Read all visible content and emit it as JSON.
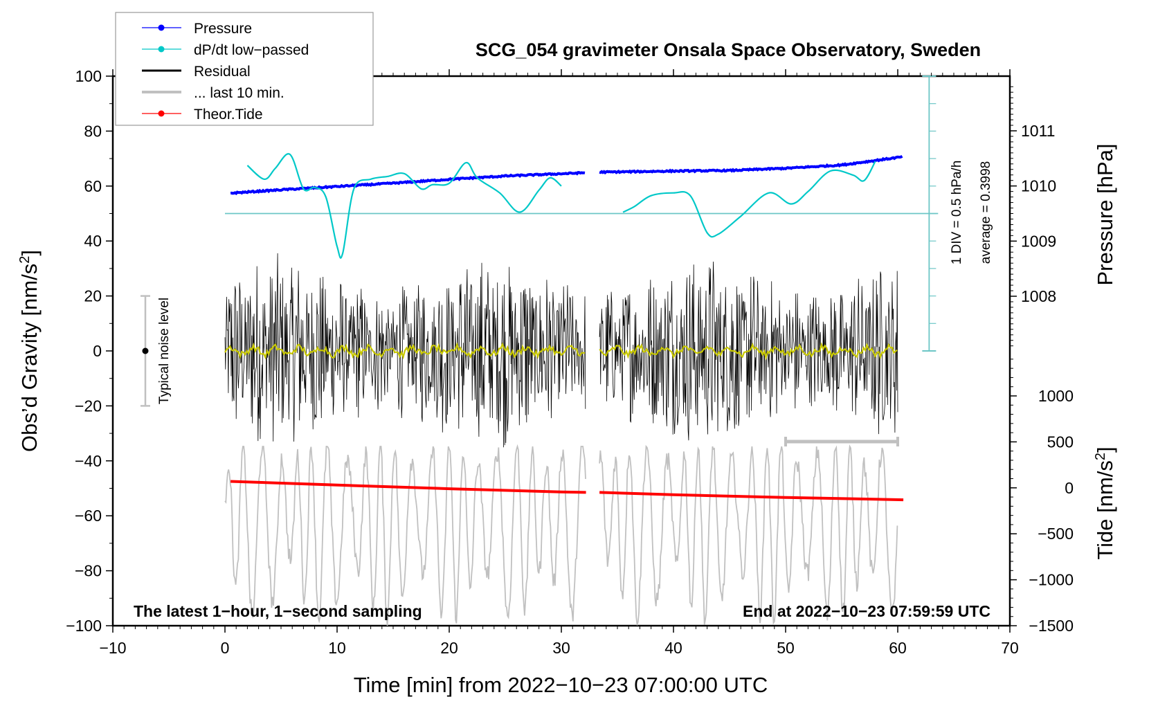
{
  "chart_data": {
    "type": "line",
    "title": "SCG_054 gravimeter Onsala Space Observatory, Sweden",
    "xlabel": "Time [min] from 2022−10−23 07:00:00 UTC",
    "ylabel_left": "Obs’d Gravity [nm/s",
    "ylabel_left_sup": "2",
    "ylabel_left_end": "]",
    "ylabel_right_pressure": "Pressure [hPa]",
    "ylabel_right_tide": "Tide [nm/s",
    "ylabel_right_tide_sup": "2",
    "ylabel_right_tide_end": "]",
    "xlim": [
      -10,
      70
    ],
    "ylim_left": [
      -100,
      100
    ],
    "pressure_axis_range": [
      1007,
      1011.9
    ],
    "tide_axis_range": [
      -1500,
      1000
    ],
    "x_ticks": [
      "−10",
      "0",
      "10",
      "20",
      "30",
      "40",
      "50",
      "60",
      "70"
    ],
    "x_tick_values": [
      -10,
      0,
      10,
      20,
      30,
      40,
      50,
      60,
      70
    ],
    "y_ticks_left": [
      "100",
      "80",
      "60",
      "40",
      "20",
      "0",
      "−20",
      "−40",
      "−60",
      "−80",
      "−100"
    ],
    "y_tick_values_left": [
      100,
      80,
      60,
      40,
      20,
      0,
      -20,
      -40,
      -60,
      -80,
      -100
    ],
    "pressure_ticks": [
      "1011",
      "1010",
      "1009",
      "1008"
    ],
    "pressure_tick_values": [
      1011,
      1010,
      1009,
      1008
    ],
    "tide_ticks": [
      "1000",
      "500",
      "0",
      "−500",
      "−1000",
      "−1500"
    ],
    "tide_tick_values": [
      1000,
      500,
      0,
      -500,
      -1000,
      -1500
    ],
    "legend": {
      "position": "top-left",
      "entries": [
        {
          "label": "Pressure",
          "color": "#0000ff",
          "marker": "dot"
        },
        {
          "label": "dP/dt low−passed",
          "color": "#00c8c8",
          "marker": "dot"
        },
        {
          "label": "Residual",
          "color": "#000000",
          "marker": "line"
        },
        {
          "label": "... last 10 min.",
          "color": "#c0c0c0",
          "marker": "line"
        },
        {
          "label": "Theor.Tide",
          "color": "#ff0000",
          "marker": "dot"
        }
      ]
    },
    "annotations": {
      "bottom_left": "The latest 1−hour, 1−second sampling",
      "bottom_right": "End at 2022−10−23 07:59:59 UTC",
      "noise_label": "Typical noise level",
      "noise_range": [
        -20,
        20
      ],
      "div_label": "1 DIV = 0.5 hPa/h",
      "average_label": "average = 0.3998",
      "last10_bar_minutes": [
        50,
        60
      ],
      "last10_bar_level": -33
    },
    "gap_minutes": [
      32.2,
      33.4
    ],
    "series": [
      {
        "name": "Pressure",
        "units": "hPa",
        "color": "#0000ff",
        "x": [
          0.5,
          5,
          10,
          15,
          20,
          25,
          32.2,
          33.4,
          40,
          45,
          50,
          55,
          60.5
        ],
        "values": [
          1009.87,
          1009.93,
          1009.99,
          1010.05,
          1010.12,
          1010.18,
          1010.24,
          1010.25,
          1010.27,
          1010.28,
          1010.32,
          1010.38,
          1010.53
        ]
      },
      {
        "name": "dP/dt low-passed",
        "units": "plot units (0 ref line at 50)",
        "color": "#00c8c8",
        "x": [
          2,
          3.5,
          4.5,
          5.8,
          7,
          8,
          9,
          10,
          10.5,
          11.5,
          13,
          14.5,
          16,
          17.5,
          18.5,
          20,
          21.5,
          22.5,
          24.5,
          26.3,
          28,
          29,
          30,
          35.5,
          36.5,
          38,
          40,
          41.5,
          43,
          44,
          46,
          48.5,
          50.5,
          52,
          54,
          56,
          57,
          58
        ],
        "values": [
          67.5,
          62.5,
          66.5,
          71.5,
          59,
          59.5,
          56,
          38,
          35.5,
          59,
          62.5,
          63.5,
          64.5,
          59,
          60.5,
          61,
          68.5,
          63,
          57.5,
          50.5,
          58.5,
          63,
          60,
          50.5,
          52.5,
          56.5,
          57.5,
          56.5,
          43,
          42.5,
          49,
          57.5,
          53.5,
          58,
          65.5,
          64,
          62,
          69
        ]
      },
      {
        "name": "Residual",
        "units": "nm/s2",
        "color": "#000000",
        "envelope_min": -38,
        "envelope_max": 39,
        "smoothed_color": "#c8c800"
      },
      {
        "name": "... last 10 min.",
        "units": "nm/s2 (Tide axis scaling)",
        "color": "#c0c0c0",
        "envelope_min": -1500,
        "envelope_max": 450
      },
      {
        "name": "Theor.Tide",
        "units": "nm/s2",
        "color": "#ff0000",
        "x": [
          0.5,
          10,
          20,
          30,
          32.2,
          33.4,
          40,
          50,
          60.5
        ],
        "values": [
          70,
          30,
          -10,
          -45,
          -50,
          -50,
          -75,
          -105,
          -130
        ]
      }
    ]
  }
}
